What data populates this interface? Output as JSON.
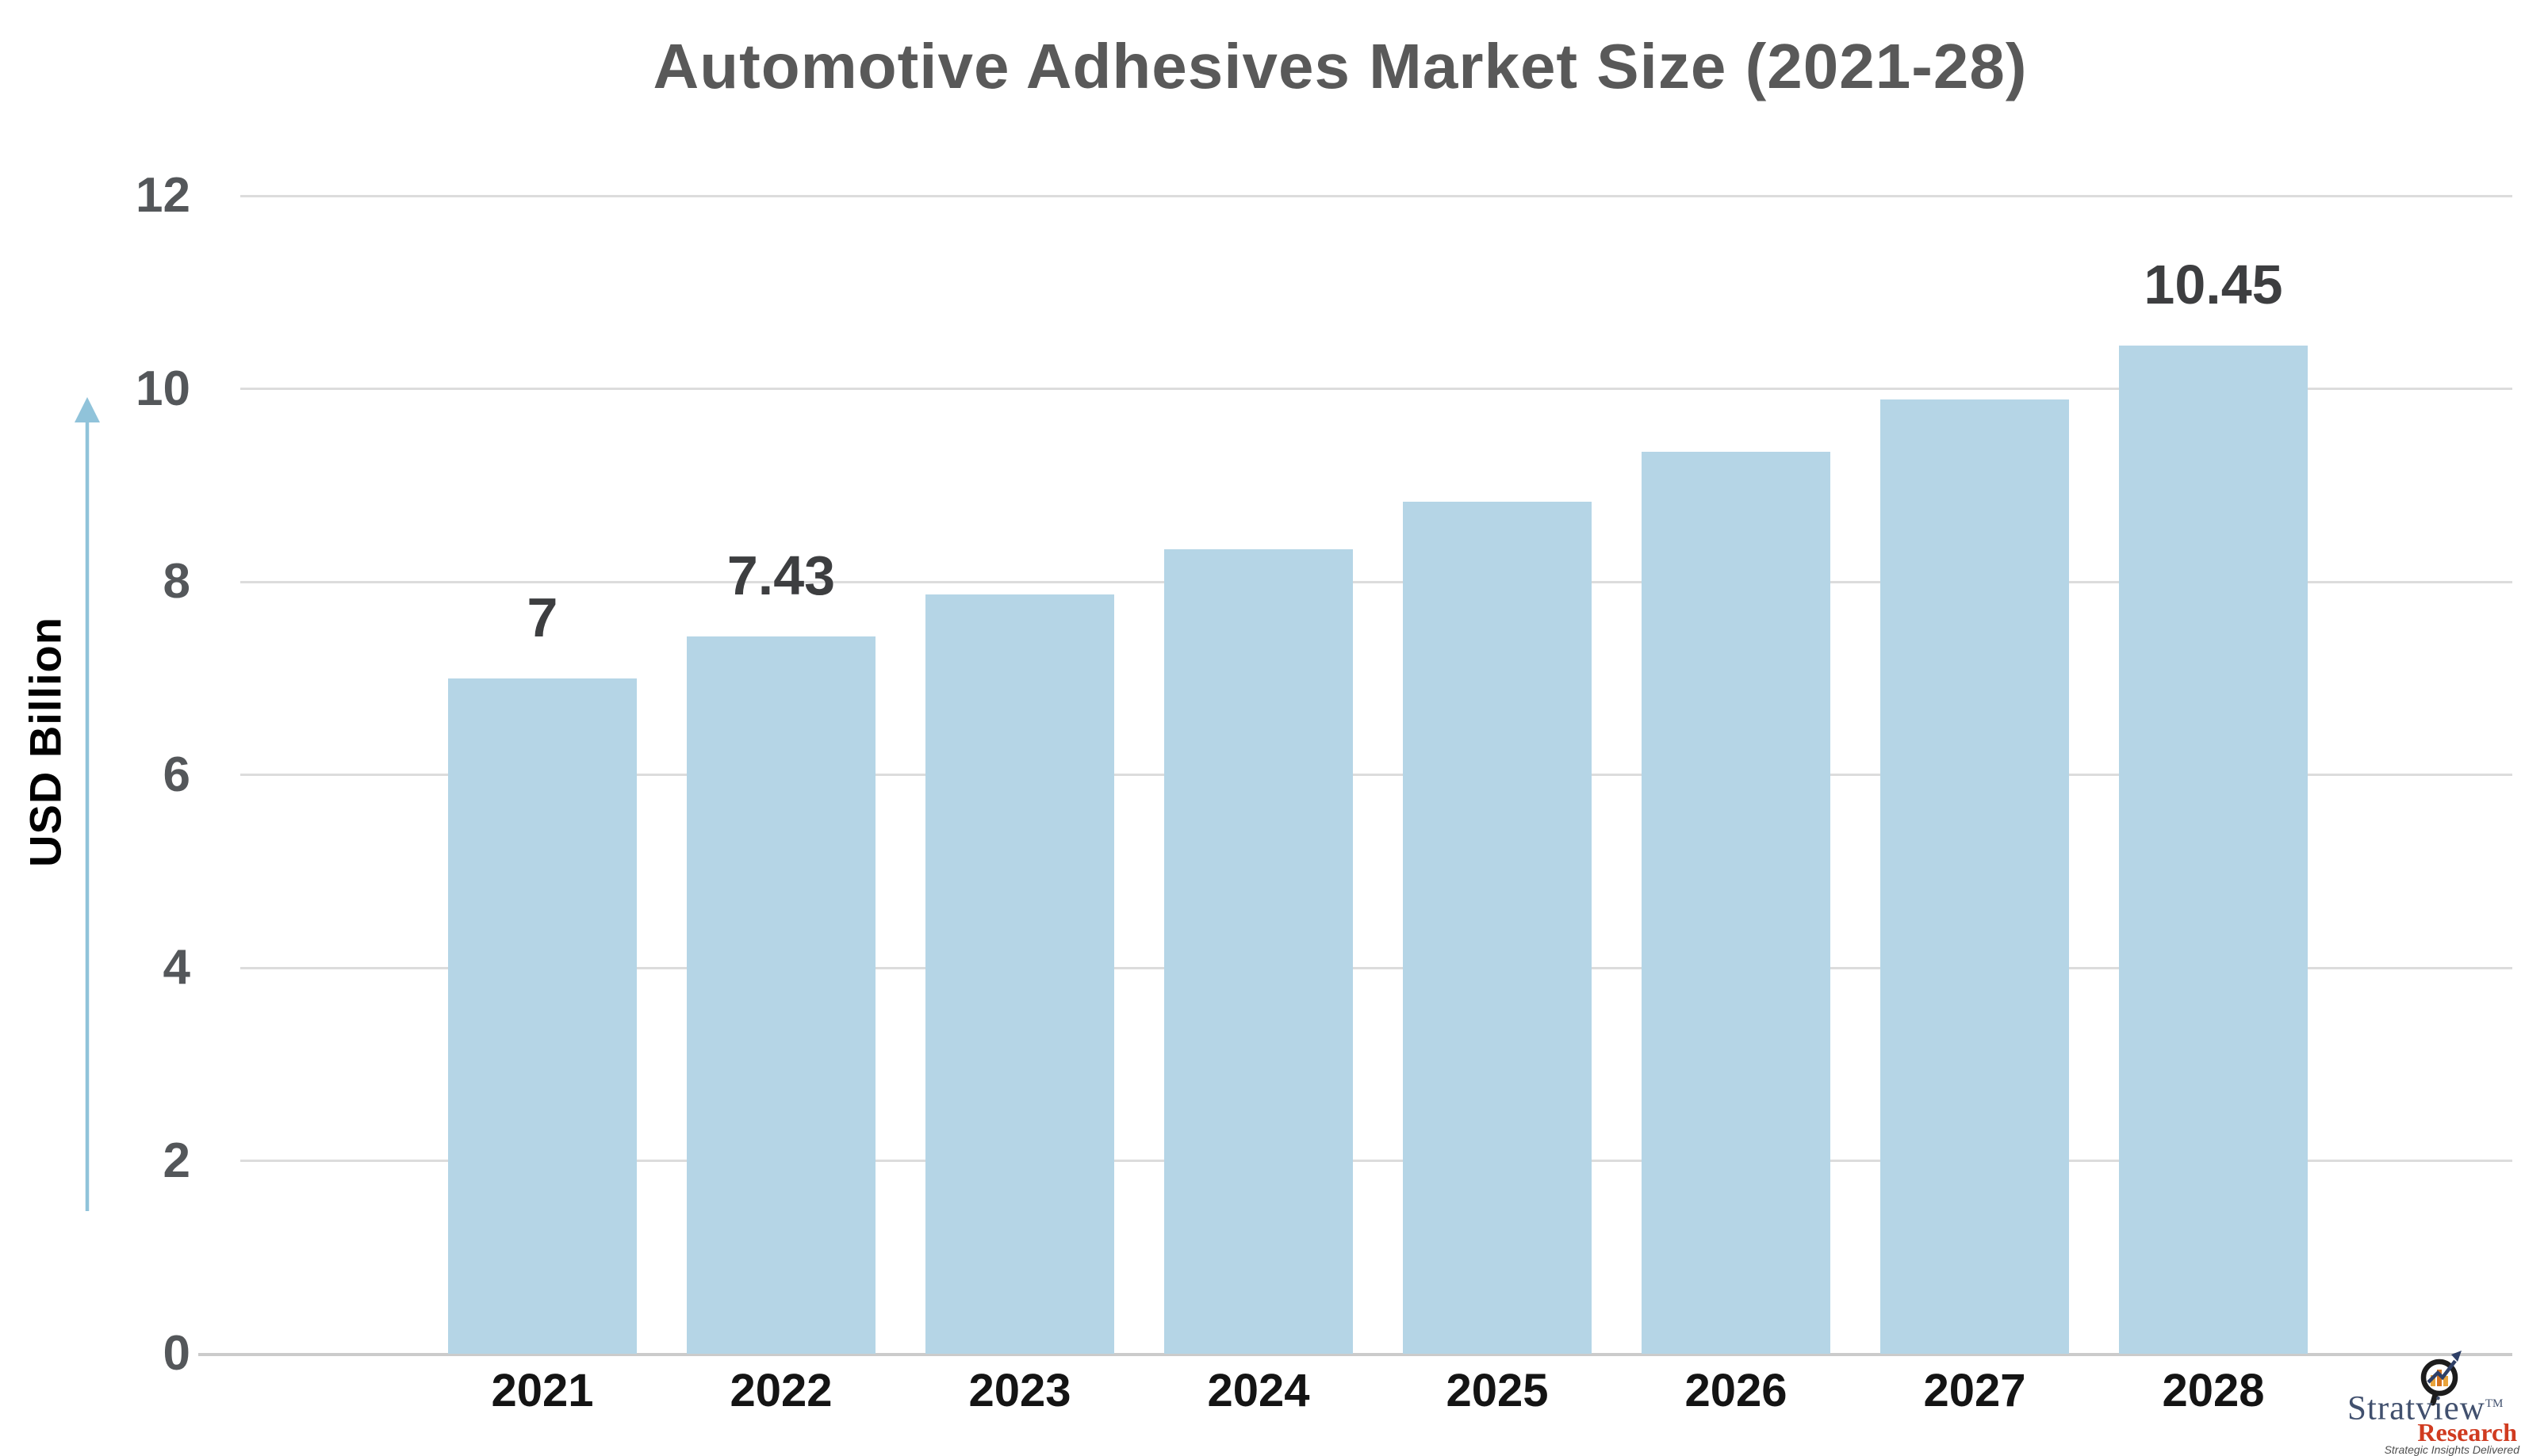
{
  "chart_data": {
    "type": "bar",
    "title": "Automotive Adhesives Market Size (2021-28)",
    "ylabel": "USD Billion",
    "xlabel": "",
    "categories": [
      "2021",
      "2022",
      "2023",
      "2024",
      "2025",
      "2026",
      "2027",
      "2028"
    ],
    "values": [
      7,
      7.43,
      7.87,
      8.34,
      8.83,
      9.35,
      9.89,
      10.45
    ],
    "data_labels": [
      "7",
      "7.43",
      "",
      "",
      "",
      "",
      "",
      "10.45"
    ],
    "ylim": [
      0,
      12
    ],
    "yticks": [
      0,
      2,
      4,
      6,
      8,
      10,
      12
    ],
    "grid": "horizontal",
    "legend": "none"
  },
  "colors": {
    "bar_fill": "#b5d5e6",
    "gridline": "#dcdcdc",
    "axis_line": "#cbcbcb",
    "title_text": "#595959",
    "y_tick_text": "#54575a",
    "x_tick_text": "#141414",
    "data_label_text": "#3d3e40",
    "y_axis_title_text": "#000000",
    "arrow": "#90c3da",
    "logo_name": "#41506e",
    "logo_research": "#d03b20",
    "logo_tagline": "#4f4f4f"
  },
  "branding": {
    "name": "Stratview",
    "trademark": "TM",
    "division": "Research",
    "tagline": "Strategic Insights Delivered"
  }
}
